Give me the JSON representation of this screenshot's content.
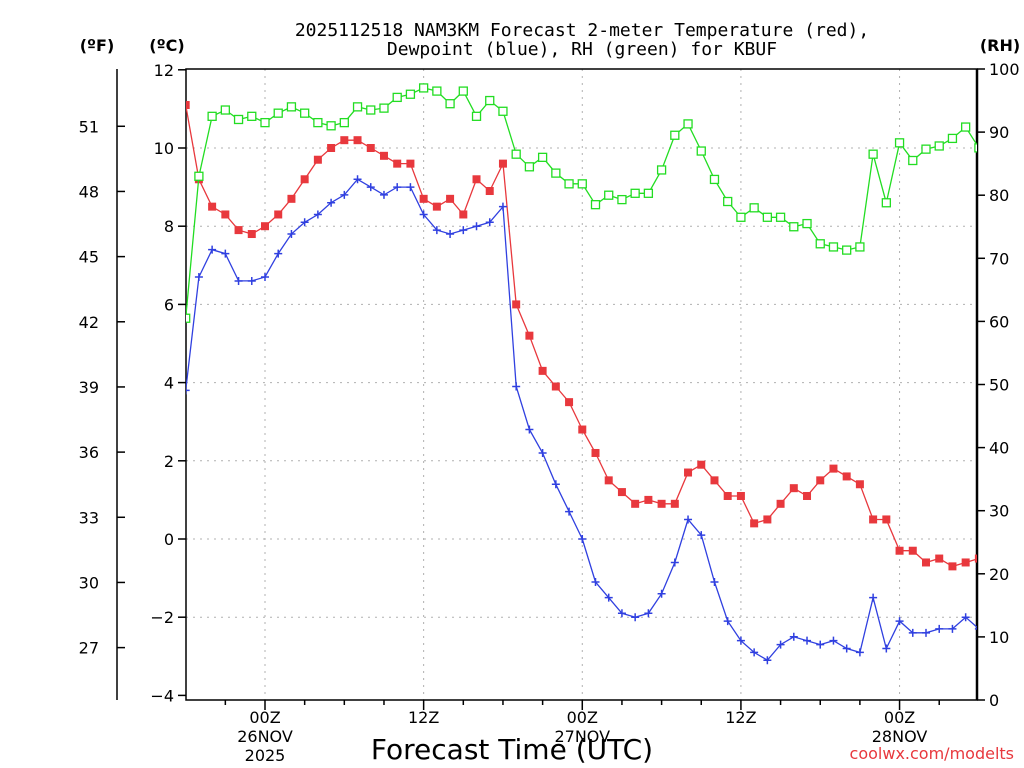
{
  "chart_data": {
    "type": "line",
    "title_line1": "2025112518 NAM3KM Forecast 2-meter Temperature (red),",
    "title_line2": "Dewpoint (blue), RH (green) for KBUF",
    "xlabel": "Forecast Time (UTC)",
    "unit_f": "(ºF)",
    "unit_c": "(ºC)",
    "unit_rh": "(RH)",
    "credit": "coolwx.com/modelts",
    "x_start_hour": -6,
    "x_end_hour": 53,
    "x_ticks": [
      {
        "hour": 0,
        "lines": [
          "00Z",
          "26NOV",
          "2025"
        ]
      },
      {
        "hour": 12,
        "lines": [
          "12Z"
        ]
      },
      {
        "hour": 24,
        "lines": [
          "00Z",
          "27NOV"
        ]
      },
      {
        "hour": 36,
        "lines": [
          "12Z"
        ]
      },
      {
        "hour": 48,
        "lines": [
          "00Z",
          "28NOV"
        ]
      }
    ],
    "c_axis": {
      "min": -4,
      "max": 12,
      "ticks": [
        -4,
        -2,
        0,
        2,
        4,
        6,
        8,
        10,
        12
      ]
    },
    "f_ticks": [
      27,
      30,
      33,
      36,
      39,
      42,
      45,
      48,
      51
    ],
    "rh_axis": {
      "min": 0,
      "max": 100,
      "ticks": [
        0,
        10,
        20,
        30,
        40,
        50,
        60,
        70,
        80,
        90,
        100
      ]
    },
    "series": [
      {
        "name": "Temperature",
        "unit": "C",
        "color": "#e8383d",
        "marker": "filled-square",
        "axis": "c",
        "values": [
          [
            -6,
            11.1
          ],
          [
            -5,
            9.2
          ],
          [
            -4,
            8.5
          ],
          [
            -3,
            8.3
          ],
          [
            -2,
            7.9
          ],
          [
            -1,
            7.8
          ],
          [
            0,
            8.0
          ],
          [
            1,
            8.3
          ],
          [
            2,
            8.7
          ],
          [
            3,
            9.2
          ],
          [
            4,
            9.7
          ],
          [
            5,
            10.0
          ],
          [
            6,
            10.2
          ],
          [
            7,
            10.2
          ],
          [
            8,
            10.0
          ],
          [
            9,
            9.8
          ],
          [
            10,
            9.6
          ],
          [
            11,
            9.6
          ],
          [
            12,
            8.7
          ],
          [
            13,
            8.5
          ],
          [
            14,
            8.7
          ],
          [
            15,
            8.3
          ],
          [
            16,
            9.2
          ],
          [
            17,
            8.9
          ],
          [
            18,
            9.6
          ],
          [
            19,
            6.0
          ],
          [
            20,
            5.2
          ],
          [
            21,
            4.3
          ],
          [
            22,
            3.9
          ],
          [
            23,
            3.5
          ],
          [
            24,
            2.8
          ],
          [
            25,
            2.2
          ],
          [
            26,
            1.5
          ],
          [
            27,
            1.2
          ],
          [
            28,
            0.9
          ],
          [
            29,
            1.0
          ],
          [
            30,
            0.9
          ],
          [
            31,
            0.9
          ],
          [
            32,
            1.7
          ],
          [
            33,
            1.9
          ],
          [
            34,
            1.5
          ],
          [
            35,
            1.1
          ],
          [
            36,
            1.1
          ],
          [
            37,
            0.4
          ],
          [
            38,
            0.5
          ],
          [
            39,
            0.9
          ],
          [
            40,
            1.3
          ],
          [
            41,
            1.1
          ],
          [
            42,
            1.5
          ],
          [
            43,
            1.8
          ],
          [
            44,
            1.6
          ],
          [
            45,
            1.4
          ],
          [
            46,
            0.5
          ],
          [
            47,
            0.5
          ],
          [
            48,
            -0.3
          ],
          [
            49,
            -0.3
          ],
          [
            50,
            -0.6
          ],
          [
            51,
            -0.5
          ],
          [
            52,
            -0.7
          ],
          [
            53,
            -0.6
          ],
          [
            54,
            -0.5
          ]
        ]
      },
      {
        "name": "Dewpoint",
        "unit": "C",
        "color": "#3040e0",
        "marker": "plus",
        "axis": "c",
        "values": [
          [
            -6,
            3.8
          ],
          [
            -5,
            6.7
          ],
          [
            -4,
            7.4
          ],
          [
            -3,
            7.3
          ],
          [
            -2,
            6.6
          ],
          [
            -1,
            6.6
          ],
          [
            0,
            6.7
          ],
          [
            1,
            7.3
          ],
          [
            2,
            7.8
          ],
          [
            3,
            8.1
          ],
          [
            4,
            8.3
          ],
          [
            5,
            8.6
          ],
          [
            6,
            8.8
          ],
          [
            7,
            9.2
          ],
          [
            8,
            9.0
          ],
          [
            9,
            8.8
          ],
          [
            10,
            9.0
          ],
          [
            11,
            9.0
          ],
          [
            12,
            8.3
          ],
          [
            13,
            7.9
          ],
          [
            14,
            7.8
          ],
          [
            15,
            7.9
          ],
          [
            16,
            8.0
          ],
          [
            17,
            8.1
          ],
          [
            18,
            8.5
          ],
          [
            19,
            3.9
          ],
          [
            20,
            2.8
          ],
          [
            21,
            2.2
          ],
          [
            22,
            1.4
          ],
          [
            23,
            0.7
          ],
          [
            24,
            0.0
          ],
          [
            25,
            -1.1
          ],
          [
            26,
            -1.5
          ],
          [
            27,
            -1.9
          ],
          [
            28,
            -2.0
          ],
          [
            29,
            -1.9
          ],
          [
            30,
            -1.4
          ],
          [
            31,
            -0.6
          ],
          [
            32,
            0.5
          ],
          [
            33,
            0.1
          ],
          [
            34,
            -1.1
          ],
          [
            35,
            -2.1
          ],
          [
            36,
            -2.6
          ],
          [
            37,
            -2.9
          ],
          [
            38,
            -3.1
          ],
          [
            39,
            -2.7
          ],
          [
            40,
            -2.5
          ],
          [
            41,
            -2.6
          ],
          [
            42,
            -2.7
          ],
          [
            43,
            -2.6
          ],
          [
            44,
            -2.8
          ],
          [
            45,
            -2.9
          ],
          [
            46,
            -1.5
          ],
          [
            47,
            -2.8
          ],
          [
            48,
            -2.1
          ],
          [
            49,
            -2.4
          ],
          [
            50,
            -2.4
          ],
          [
            51,
            -2.3
          ],
          [
            52,
            -2.3
          ],
          [
            53,
            -2.0
          ],
          [
            54,
            -2.3
          ]
        ]
      },
      {
        "name": "RH",
        "unit": "%",
        "color": "#22dd22",
        "marker": "open-square",
        "axis": "rh",
        "values": [
          [
            -6,
            60.5
          ],
          [
            -5,
            83
          ],
          [
            -4,
            92.5
          ],
          [
            -3,
            93.5
          ],
          [
            -2,
            92
          ],
          [
            -1,
            92.5
          ],
          [
            0,
            91.5
          ],
          [
            1,
            93
          ],
          [
            2,
            94
          ],
          [
            3,
            93
          ],
          [
            4,
            91.5
          ],
          [
            5,
            91
          ],
          [
            6,
            91.5
          ],
          [
            7,
            94
          ],
          [
            8,
            93.5
          ],
          [
            9,
            93.8
          ],
          [
            10,
            95.5
          ],
          [
            11,
            96
          ],
          [
            12,
            97
          ],
          [
            13,
            96.5
          ],
          [
            14,
            94.5
          ],
          [
            15,
            96.5
          ],
          [
            16,
            92.5
          ],
          [
            17,
            95
          ],
          [
            18,
            93.3
          ],
          [
            19,
            86.5
          ],
          [
            20,
            84.5
          ],
          [
            21,
            86
          ],
          [
            22,
            83.5
          ],
          [
            23,
            81.8
          ],
          [
            24,
            81.8
          ],
          [
            25,
            78.5
          ],
          [
            26,
            80
          ],
          [
            27,
            79.3
          ],
          [
            28,
            80.3
          ],
          [
            29,
            80.3
          ],
          [
            30,
            84
          ],
          [
            31,
            89.5
          ],
          [
            32,
            91.3
          ],
          [
            33,
            87
          ],
          [
            34,
            82.5
          ],
          [
            35,
            79
          ],
          [
            36,
            76.5
          ],
          [
            37,
            78
          ],
          [
            38,
            76.5
          ],
          [
            39,
            76.5
          ],
          [
            40,
            75
          ],
          [
            41,
            75.5
          ],
          [
            42,
            72.3
          ],
          [
            43,
            71.8
          ],
          [
            44,
            71.3
          ],
          [
            45,
            71.8
          ],
          [
            46,
            86.5
          ],
          [
            47,
            78.8
          ],
          [
            48,
            88.3
          ],
          [
            49,
            85.5
          ],
          [
            50,
            87.3
          ],
          [
            51,
            87.8
          ],
          [
            52,
            89
          ],
          [
            53,
            90.8
          ],
          [
            54,
            87.5
          ]
        ]
      }
    ]
  }
}
